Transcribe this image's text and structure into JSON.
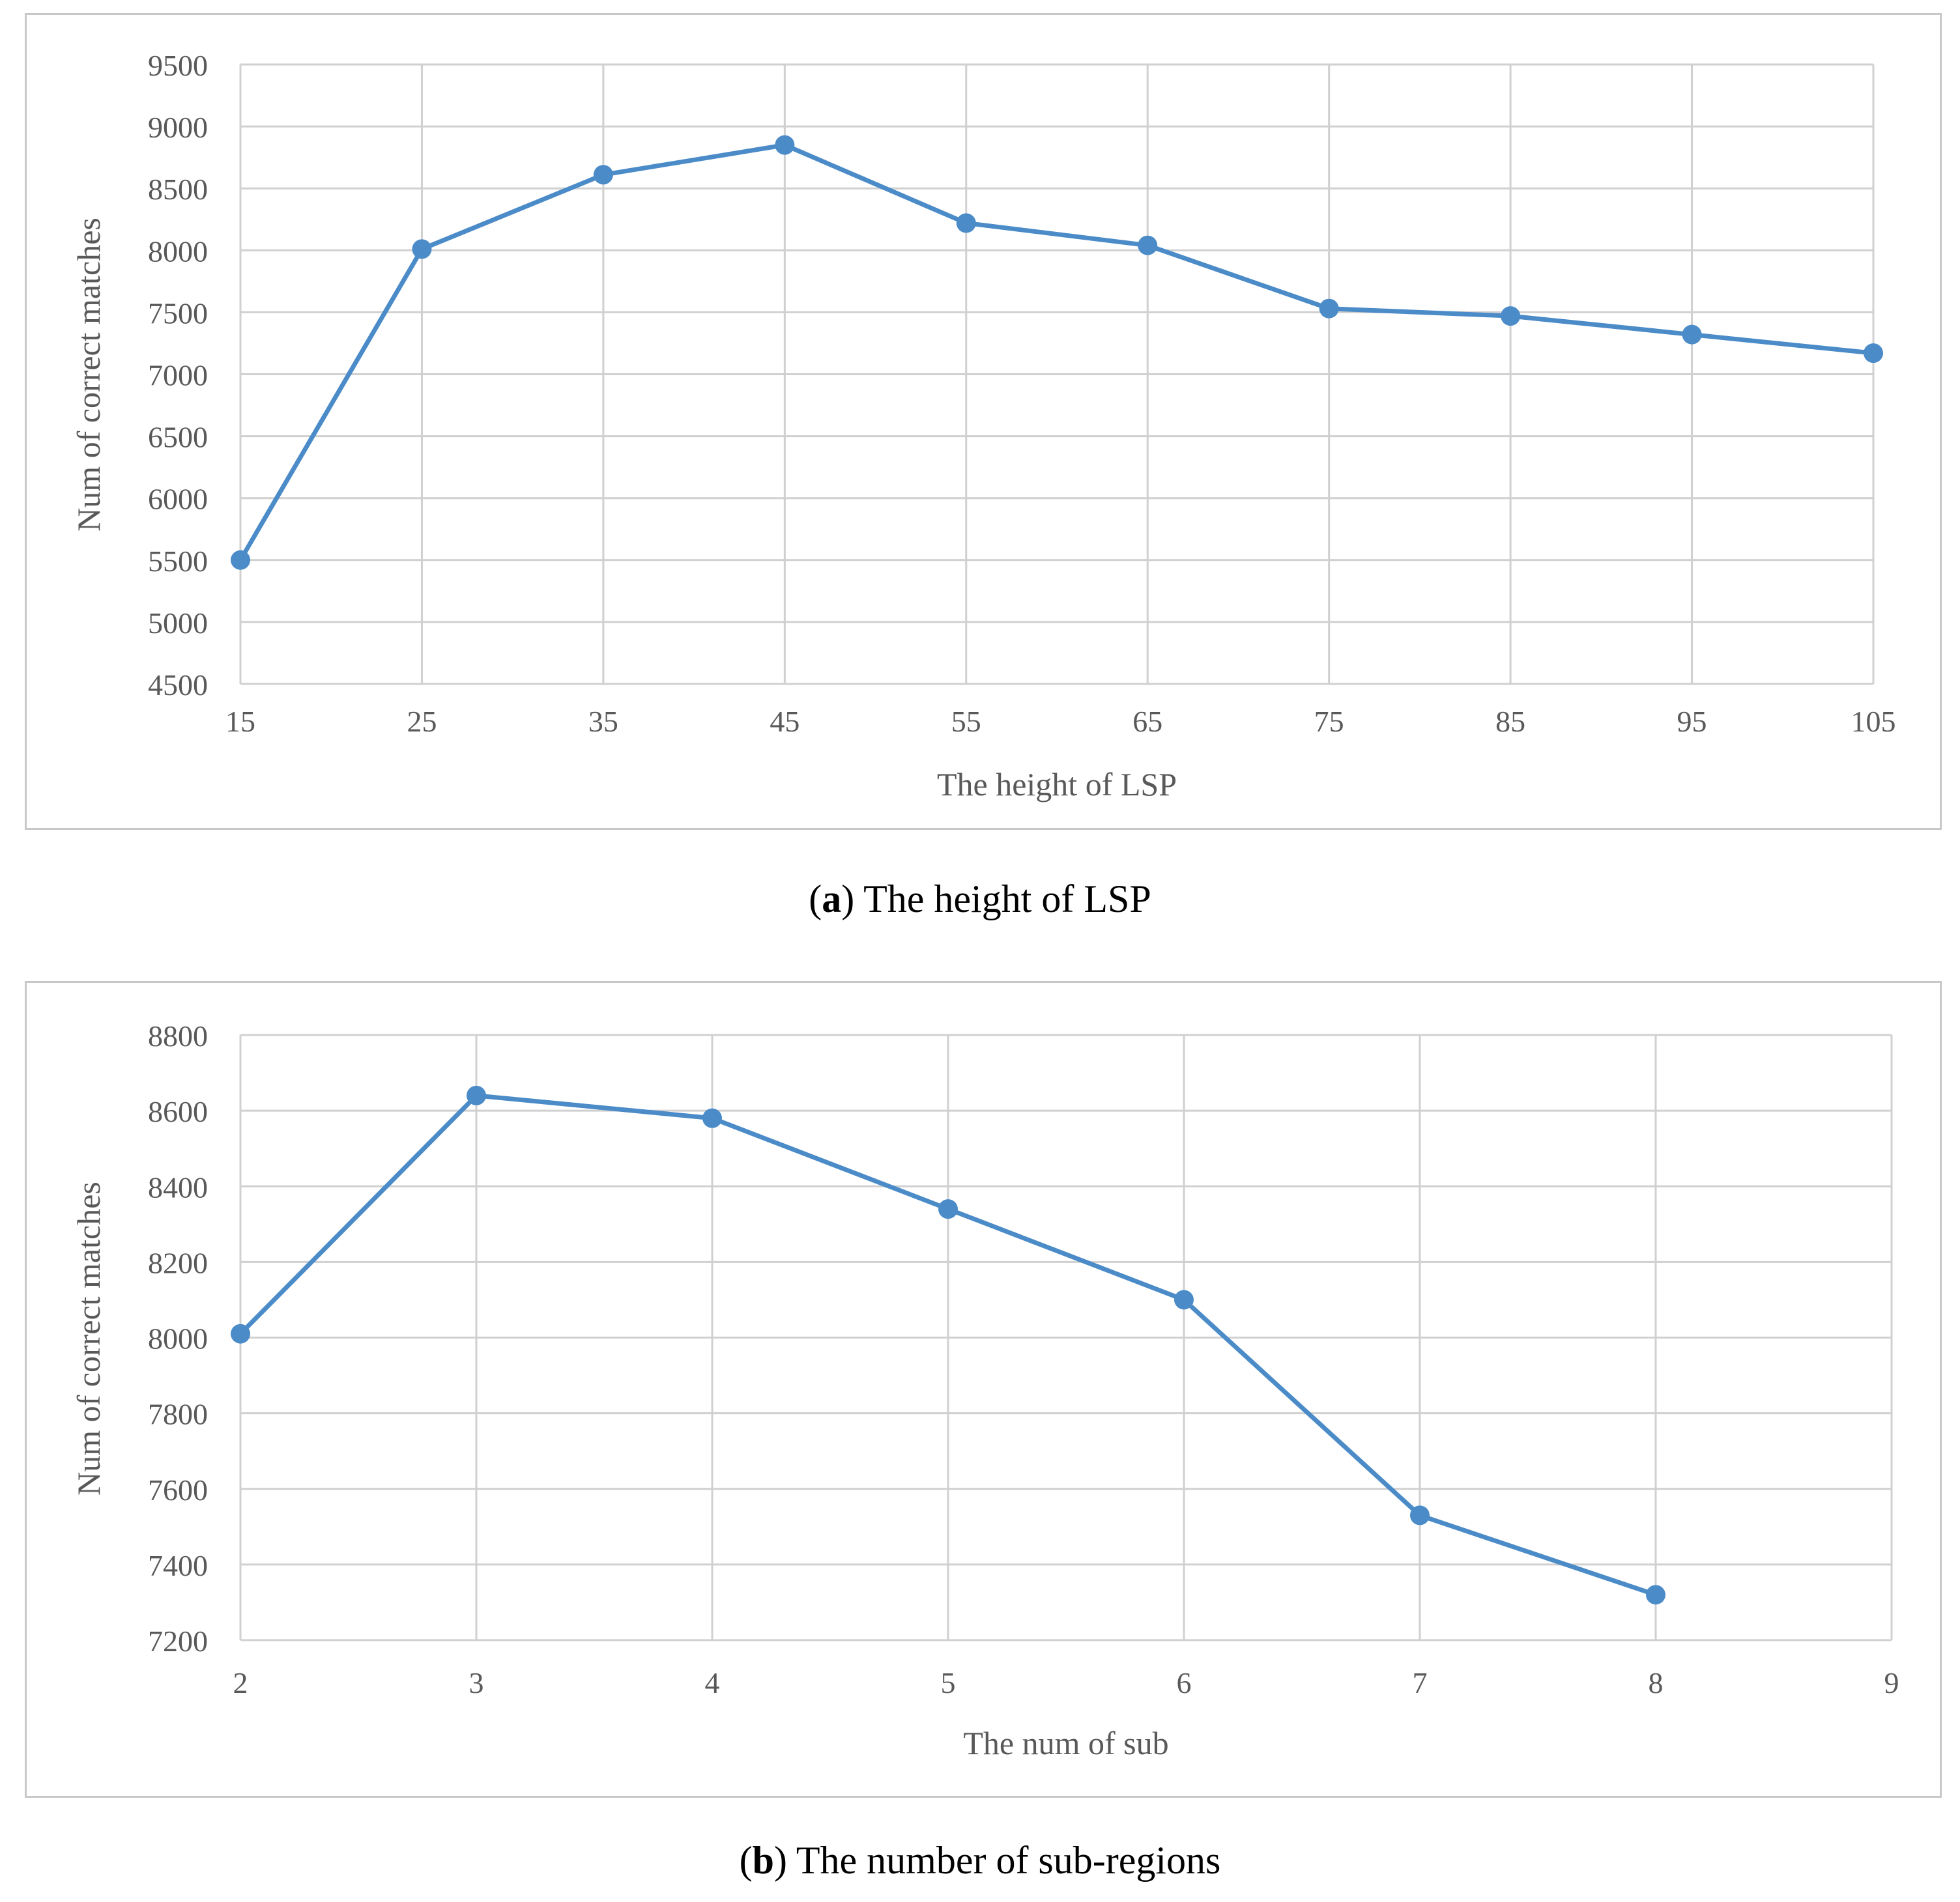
{
  "colors": {
    "line": "#4a8bc8",
    "grid": "#d0d0d0",
    "axis_text": "#595959"
  },
  "captions": [
    {
      "letter": "a",
      "text": "The height of LSP"
    },
    {
      "letter": "b",
      "text": "The number of sub-regions"
    }
  ],
  "chart_data": [
    {
      "type": "line",
      "title": "",
      "xlabel": "The height of LSP",
      "ylabel": "Num of correct matches",
      "x": [
        15,
        25,
        35,
        45,
        55,
        65,
        75,
        85,
        95,
        105
      ],
      "x_ticks": [
        "15",
        "25",
        "35",
        "45",
        "55",
        "65",
        "75",
        "85",
        "95",
        "105"
      ],
      "xlim": [
        15,
        105
      ],
      "ylim": [
        4500,
        9500
      ],
      "y_ticks": [
        4500,
        5000,
        5500,
        6000,
        6500,
        7000,
        7500,
        8000,
        8500,
        9000,
        9500
      ],
      "grid": true,
      "series": [
        {
          "name": "Num of correct matches",
          "values": [
            5500,
            8010,
            8610,
            8850,
            8220,
            8040,
            7530,
            7470,
            7320,
            7170
          ]
        }
      ]
    },
    {
      "type": "line",
      "title": "",
      "xlabel": "The num of sub",
      "ylabel": "Num of correct matches",
      "x": [
        2,
        3,
        4,
        5,
        6,
        7,
        8
      ],
      "x_ticks": [
        "2",
        "3",
        "4",
        "5",
        "6",
        "7",
        "8",
        "9"
      ],
      "xlim": [
        2,
        9
      ],
      "ylim": [
        7200,
        8800
      ],
      "y_ticks": [
        7200,
        7400,
        7600,
        7800,
        8000,
        8200,
        8400,
        8600,
        8800
      ],
      "grid": true,
      "series": [
        {
          "name": "Num of correct matches",
          "values": [
            8010,
            8640,
            8580,
            8340,
            8100,
            7530,
            7320
          ]
        }
      ]
    }
  ]
}
